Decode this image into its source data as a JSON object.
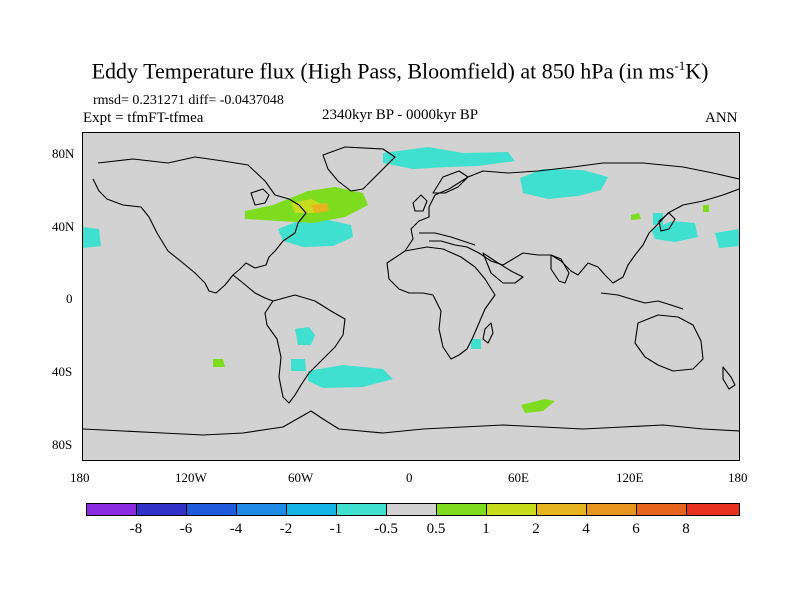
{
  "title": {
    "main": "Eddy Temperature flux (High Pass, Bloomfield) at 850 hPa (in ms",
    "sup": "-1",
    "tail": "K)"
  },
  "subtitles": {
    "stats": "rmsd= 0.231271 diff= -0.0437048",
    "expt": "Expt = tfmFT-tfmea",
    "period": "2340kyr BP - 0000kyr BP",
    "season": "ANN"
  },
  "map": {
    "lat_labels": [
      "80N",
      "40N",
      "0",
      "40S",
      "80S"
    ],
    "lon_labels": [
      "180",
      "120W",
      "60W",
      "0",
      "60E",
      "120E",
      "180"
    ],
    "background_color": "#d2d2d2",
    "coast_color": "#000000"
  },
  "colorbar": {
    "colors": [
      "#8a2be2",
      "#3232c8",
      "#1e5adc",
      "#1e8ce6",
      "#14b4e6",
      "#40e0d0",
      "#d2d2d2",
      "#7ddc1e",
      "#c8dc1e",
      "#e6b41e",
      "#e6961e",
      "#e6641e",
      "#e6321e"
    ],
    "labels": [
      "-8",
      "-6",
      "-4",
      "-2",
      "-1",
      "-0.5",
      "0.5",
      "1",
      "2",
      "4",
      "6",
      "8"
    ]
  }
}
